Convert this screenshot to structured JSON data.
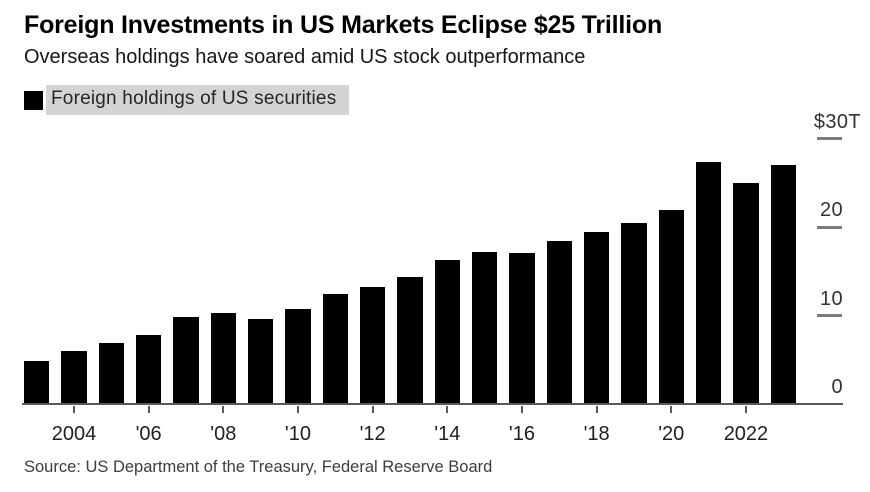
{
  "header": {
    "title": "Foreign Investments in US Markets Eclipse $25 Trillion",
    "subtitle": "Overseas holdings have soared amid US stock outperformance"
  },
  "legend": {
    "label": "Foreign holdings of US securities"
  },
  "footer": {
    "source": "Source: US Department of the Treasury, Federal Reserve Board"
  },
  "colors": {
    "bar": "#000000",
    "legend_highlight": "#d4d4d4",
    "axis_line": "#595959",
    "y_tick_dash": "#7b7b7b",
    "background": "#ffffff"
  },
  "chart_data": {
    "type": "bar",
    "title": "Foreign Investments in US Markets Eclipse $25 Trillion",
    "subtitle": "Overseas holdings have soared amid US stock outperformance",
    "series_name": "Foreign holdings of US securities",
    "unit": "USD trillions",
    "categories": [
      2003,
      2004,
      2005,
      2006,
      2007,
      2008,
      2009,
      2010,
      2011,
      2012,
      2013,
      2014,
      2015,
      2016,
      2017,
      2018,
      2019,
      2020,
      2021,
      2022,
      2023
    ],
    "values": [
      4.9,
      6.0,
      6.9,
      7.8,
      9.8,
      10.3,
      9.6,
      10.7,
      12.4,
      13.2,
      14.4,
      16.3,
      17.2,
      17.1,
      18.4,
      19.4,
      20.5,
      21.9,
      27.4,
      25.0,
      27.0
    ],
    "ylim": [
      0,
      30
    ],
    "grid": false,
    "legend_position": "top-left",
    "y_axis": {
      "side": "right",
      "ticks": [
        {
          "value": 30,
          "label": "$30T"
        },
        {
          "value": 20,
          "label": "20"
        },
        {
          "value": 10,
          "label": "10"
        },
        {
          "value": 0,
          "label": "0"
        }
      ]
    },
    "x_axis": {
      "ticks": [
        {
          "year": 2004,
          "label": "2004"
        },
        {
          "year": 2006,
          "label": "'06"
        },
        {
          "year": 2008,
          "label": "'08"
        },
        {
          "year": 2010,
          "label": "'10"
        },
        {
          "year": 2012,
          "label": "'12"
        },
        {
          "year": 2014,
          "label": "'14"
        },
        {
          "year": 2016,
          "label": "'16"
        },
        {
          "year": 2018,
          "label": "'18"
        },
        {
          "year": 2020,
          "label": "'20"
        },
        {
          "year": 2022,
          "label": "2022"
        }
      ]
    }
  }
}
